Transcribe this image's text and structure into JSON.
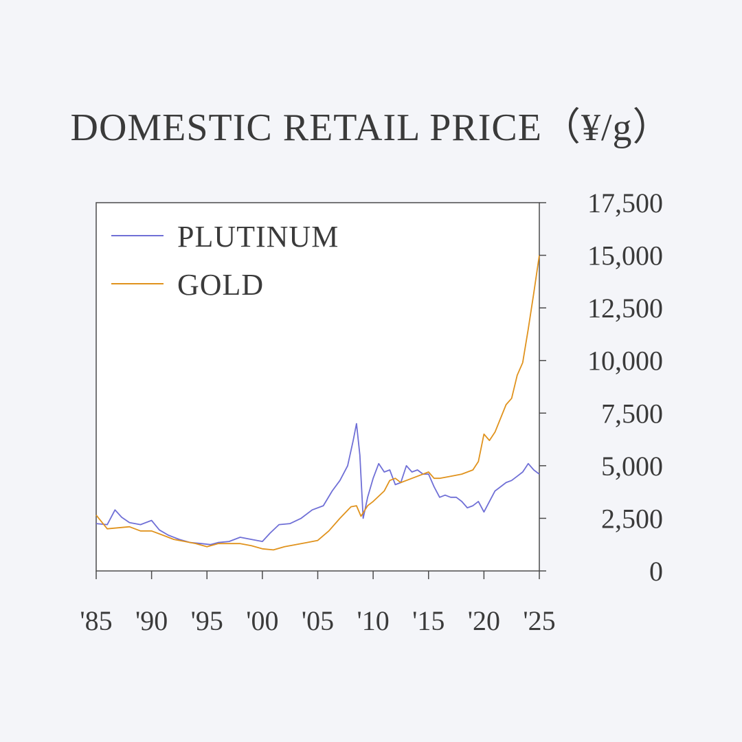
{
  "chart_data": {
    "type": "line",
    "title": "DOMESTIC RETAIL PRICE（¥/g）",
    "xlabel": "",
    "ylabel": "",
    "xlim": [
      1985,
      2025
    ],
    "ylim": [
      0,
      17500
    ],
    "x_ticks": [
      1985,
      1990,
      1995,
      2000,
      2005,
      2010,
      2015,
      2020,
      2025
    ],
    "x_tick_labels": [
      "'85",
      "'90",
      "'95",
      "'00",
      "'05",
      "'10",
      "'15",
      "'20",
      "'25"
    ],
    "y_ticks": [
      0,
      2500,
      5000,
      7500,
      10000,
      12500,
      15000,
      17500
    ],
    "y_tick_labels": [
      "0",
      "2,500",
      "5,000",
      "7,500",
      "10,000",
      "12,500",
      "15,000",
      "17,500"
    ],
    "y_axis_side": "right",
    "grid": false,
    "legend_position": "top-left",
    "series": [
      {
        "name": "PLUTINUM",
        "color": "#6f6fd6",
        "x": [
          1985.0,
          1986.0,
          1986.7,
          1987.3,
          1988.0,
          1989.0,
          1990.0,
          1990.7,
          1991.5,
          1992.5,
          1993.5,
          1994.5,
          1995.3,
          1996.0,
          1997.0,
          1998.0,
          1999.0,
          2000.0,
          2000.7,
          2001.5,
          2002.5,
          2003.5,
          2004.5,
          2005.5,
          2006.3,
          2007.0,
          2007.7,
          2008.2,
          2008.5,
          2008.8,
          2009.1,
          2009.5,
          2010.0,
          2010.5,
          2011.0,
          2011.5,
          2012.0,
          2012.5,
          2013.0,
          2013.5,
          2014.0,
          2014.5,
          2015.0,
          2015.5,
          2016.0,
          2016.5,
          2017.0,
          2017.5,
          2018.0,
          2018.5,
          2019.0,
          2019.5,
          2020.0,
          2020.5,
          2021.0,
          2021.5,
          2022.0,
          2022.5,
          2023.0,
          2023.5,
          2024.0,
          2024.5,
          2025.0
        ],
        "values": [
          2250,
          2200,
          2900,
          2550,
          2300,
          2200,
          2400,
          1950,
          1700,
          1500,
          1350,
          1300,
          1250,
          1350,
          1400,
          1600,
          1500,
          1400,
          1800,
          2200,
          2250,
          2500,
          2900,
          3100,
          3800,
          4300,
          5000,
          6200,
          7000,
          5500,
          2500,
          3500,
          4400,
          5100,
          4700,
          4800,
          4100,
          4200,
          5000,
          4700,
          4800,
          4600,
          4600,
          4000,
          3500,
          3600,
          3500,
          3500,
          3300,
          3000,
          3100,
          3300,
          2800,
          3300,
          3800,
          4000,
          4200,
          4300,
          4500,
          4700,
          5100,
          4800,
          4600
        ]
      },
      {
        "name": "GOLD",
        "color": "#e0921c",
        "x": [
          1985.0,
          1986.0,
          1987.0,
          1988.0,
          1989.0,
          1990.0,
          1991.0,
          1992.0,
          1993.0,
          1994.0,
          1995.0,
          1996.0,
          1997.0,
          1998.0,
          1999.0,
          2000.0,
          2001.0,
          2002.0,
          2003.0,
          2004.0,
          2005.0,
          2006.0,
          2007.0,
          2008.0,
          2008.5,
          2008.9,
          2009.5,
          2010.0,
          2011.0,
          2011.5,
          2012.0,
          2012.5,
          2013.0,
          2014.0,
          2015.0,
          2015.5,
          2016.0,
          2017.0,
          2018.0,
          2019.0,
          2019.5,
          2020.0,
          2020.5,
          2021.0,
          2022.0,
          2022.5,
          2023.0,
          2023.5,
          2024.0,
          2024.5,
          2025.0
        ],
        "values": [
          2650,
          2000,
          2050,
          2100,
          1900,
          1900,
          1700,
          1500,
          1400,
          1300,
          1150,
          1300,
          1300,
          1300,
          1200,
          1050,
          1000,
          1150,
          1250,
          1350,
          1450,
          1900,
          2500,
          3050,
          3100,
          2600,
          3100,
          3300,
          3800,
          4300,
          4400,
          4200,
          4300,
          4500,
          4700,
          4400,
          4400,
          4500,
          4600,
          4800,
          5200,
          6500,
          6200,
          6600,
          7900,
          8200,
          9300,
          9900,
          11500,
          13200,
          15000
        ]
      }
    ]
  }
}
